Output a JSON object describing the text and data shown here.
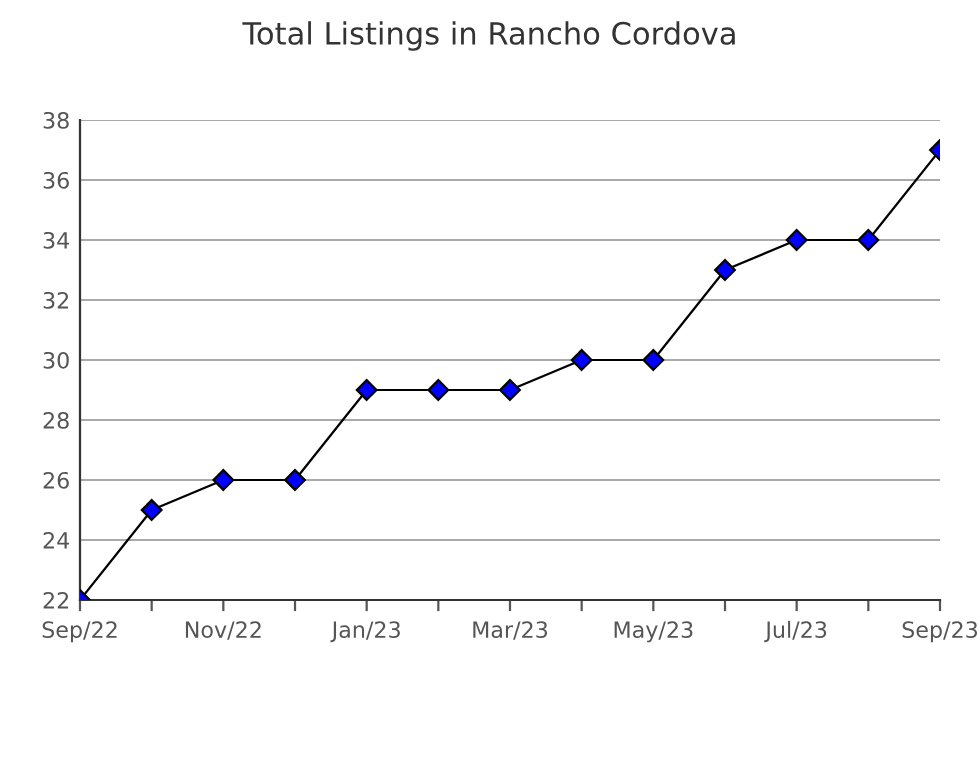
{
  "chart_data": {
    "type": "line",
    "title": "Total Listings in Rancho Cordova",
    "categories": [
      "Sep/22",
      null,
      "Nov/22",
      null,
      "Jan/23",
      null,
      "Mar/23",
      null,
      "May/23",
      null,
      "Jul/23",
      null,
      "Sep/23"
    ],
    "series": [
      {
        "color": "#0000ff",
        "values": [
          22,
          25,
          26,
          26,
          29,
          29,
          29,
          30,
          30,
          33,
          34,
          34,
          37
        ]
      }
    ],
    "ylim": [
      22,
      38
    ],
    "yticks": [
      22,
      24,
      26,
      28,
      30,
      32,
      34,
      36,
      38
    ],
    "grid": "y",
    "marker": "diamond",
    "line_style": "solid"
  }
}
